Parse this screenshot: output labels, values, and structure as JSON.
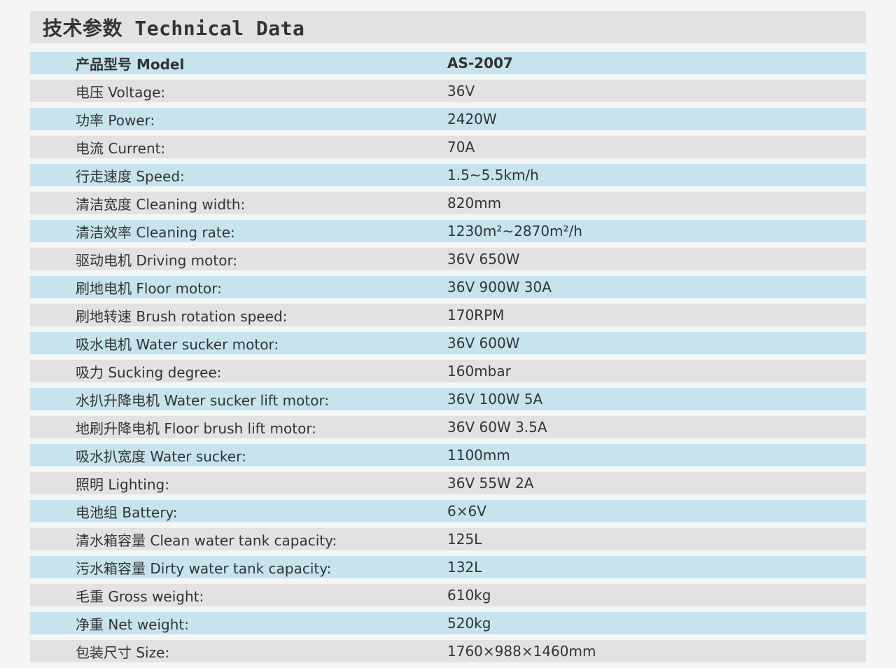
{
  "title": "技术参数 Technical Data",
  "rows": [
    {
      "label": "产品型号 Model",
      "value": "AS-2007",
      "style": "blue",
      "header": true
    },
    {
      "label": "电压 Voltage:",
      "value": "36V",
      "style": "grey"
    },
    {
      "label": "功率 Power:",
      "value": "2420W",
      "style": "blue"
    },
    {
      "label": "电流 Current:",
      "value": "70A",
      "style": "grey"
    },
    {
      "label": "行走速度 Speed:",
      "value": "1.5~5.5km/h",
      "style": "blue"
    },
    {
      "label": "清洁宽度 Cleaning width:",
      "value": "820mm",
      "style": "grey"
    },
    {
      "label": "清洁效率 Cleaning rate:",
      "value": "1230m²~2870m²/h",
      "style": "blue"
    },
    {
      "label": "驱动电机 Driving motor:",
      "value": "36V 650W",
      "style": "grey"
    },
    {
      "label": "刷地电机 Floor motor:",
      "value": "36V 900W 30A",
      "style": "blue"
    },
    {
      "label": "刷地转速 Brush rotation speed:",
      "value": "170RPM",
      "style": "grey"
    },
    {
      "label": "吸水电机 Water sucker motor:",
      "value": "36V 600W",
      "style": "blue"
    },
    {
      "label": "吸力 Sucking degree:",
      "value": "160mbar",
      "style": "grey"
    },
    {
      "label": "水扒升降电机 Water sucker lift motor:",
      "value": "36V 100W 5A",
      "style": "blue"
    },
    {
      "label": "地刷升降电机 Floor brush lift motor:",
      "value": "36V 60W 3.5A",
      "style": "grey"
    },
    {
      "label": "吸水扒宽度 Water sucker:",
      "value": "1100mm",
      "style": "blue"
    },
    {
      "label": "照明 Lighting:",
      "value": "36V 55W 2A",
      "style": "grey"
    },
    {
      "label": "电池组 Battery:",
      "value": "6×6V",
      "style": "blue"
    },
    {
      "label": "清水箱容量 Clean water tank capacity:",
      "value": "125L",
      "style": "grey"
    },
    {
      "label": "污水箱容量 Dirty water tank capacity:",
      "value": "132L",
      "style": "blue"
    },
    {
      "label": "毛重 Gross weight:",
      "value": "610kg",
      "style": "grey"
    },
    {
      "label": "净重 Net weight:",
      "value": "520kg",
      "style": "blue"
    },
    {
      "label": "包装尺寸 Size:",
      "value": "1760×988×1460mm",
      "style": "grey"
    }
  ]
}
